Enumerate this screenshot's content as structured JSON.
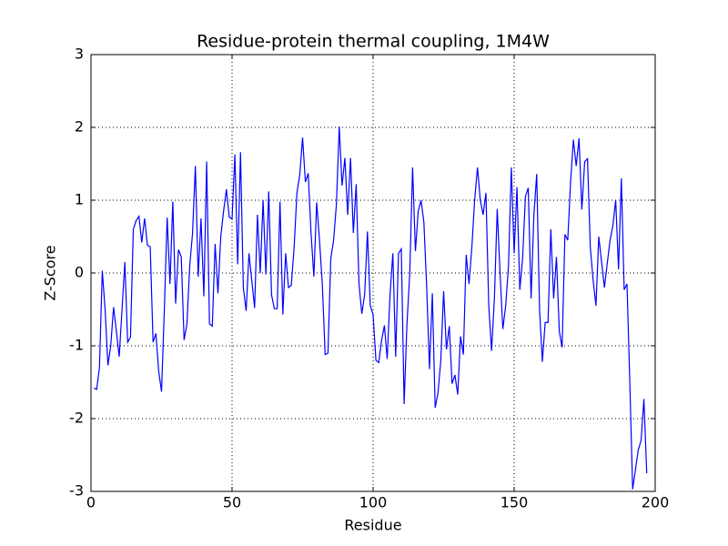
{
  "chart_data": {
    "type": "line",
    "title": "Residue-protein thermal coupling, 1M4W",
    "x_label": "Residue",
    "y_label": "Z-Score",
    "x": [
      1,
      2,
      3,
      4,
      5,
      6,
      7,
      8,
      9,
      10,
      11,
      12,
      13,
      14,
      15,
      16,
      17,
      18,
      19,
      20,
      21,
      22,
      23,
      24,
      25,
      26,
      27,
      28,
      29,
      30,
      31,
      32,
      33,
      34,
      35,
      36,
      37,
      38,
      39,
      40,
      41,
      42,
      43,
      44,
      45,
      46,
      47,
      48,
      49,
      50,
      51,
      52,
      53,
      54,
      55,
      56,
      57,
      58,
      59,
      60,
      61,
      62,
      63,
      64,
      65,
      66,
      67,
      68,
      69,
      70,
      71,
      72,
      73,
      74,
      75,
      76,
      77,
      78,
      79,
      80,
      81,
      82,
      83,
      84,
      85,
      86,
      87,
      88,
      89,
      90,
      91,
      92,
      93,
      94,
      95,
      96,
      97,
      98,
      99,
      100,
      101,
      102,
      103,
      104,
      105,
      106,
      107,
      108,
      109,
      110,
      111,
      112,
      113,
      114,
      115,
      116,
      117,
      118,
      119,
      120,
      121,
      122,
      123,
      124,
      125,
      126,
      127,
      128,
      129,
      130,
      131,
      132,
      133,
      134,
      135,
      136,
      137,
      138,
      139,
      140,
      141,
      142,
      143,
      144,
      145,
      146,
      147,
      148,
      149,
      150,
      151,
      152,
      153,
      154,
      155,
      156,
      157,
      158,
      159,
      160,
      161,
      162,
      163,
      164,
      165,
      166,
      167,
      168,
      169,
      170,
      171,
      172,
      173,
      174,
      175,
      176,
      177,
      178,
      179,
      180,
      181,
      182,
      183,
      184,
      185,
      186,
      187,
      188,
      189,
      190,
      191,
      192,
      193,
      194,
      195,
      196,
      197
    ],
    "series": [
      {
        "name": "Z-Score",
        "color": "#0000ff",
        "values": [
          -1.58,
          -1.6,
          -1.3,
          0.03,
          -0.5,
          -1.27,
          -1.0,
          -0.47,
          -0.8,
          -1.15,
          -0.5,
          0.15,
          -0.95,
          -0.88,
          0.6,
          0.72,
          0.78,
          0.42,
          0.75,
          0.38,
          0.36,
          -0.95,
          -0.83,
          -1.35,
          -1.63,
          -0.5,
          0.76,
          -0.15,
          0.98,
          -0.42,
          0.32,
          0.22,
          -0.92,
          -0.7,
          0.1,
          0.55,
          1.47,
          -0.05,
          0.75,
          -0.32,
          1.53,
          -0.7,
          -0.73,
          0.4,
          -0.28,
          0.5,
          0.85,
          1.15,
          0.77,
          0.74,
          1.63,
          0.12,
          1.66,
          -0.2,
          -0.52,
          0.27,
          -0.1,
          -0.48,
          0.8,
          0.0,
          1.0,
          -0.02,
          1.12,
          -0.3,
          -0.49,
          -0.49,
          0.98,
          -0.57,
          0.27,
          -0.2,
          -0.17,
          0.35,
          1.1,
          1.35,
          1.86,
          1.25,
          1.37,
          0.55,
          -0.05,
          0.97,
          0.45,
          -0.15,
          -1.12,
          -1.1,
          0.2,
          0.45,
          0.95,
          2.01,
          1.2,
          1.58,
          0.8,
          1.58,
          0.55,
          1.22,
          -0.15,
          -0.56,
          -0.3,
          0.57,
          -0.45,
          -0.57,
          -1.2,
          -1.23,
          -0.93,
          -0.72,
          -1.18,
          -0.3,
          0.27,
          -1.15,
          0.27,
          0.33,
          -1.8,
          -0.7,
          0.0,
          1.45,
          0.3,
          0.85,
          1.0,
          0.7,
          -0.2,
          -1.32,
          -0.28,
          -1.85,
          -1.65,
          -1.2,
          -0.25,
          -1.05,
          -0.73,
          -1.52,
          -1.4,
          -1.67,
          -0.87,
          -1.12,
          0.25,
          -0.15,
          0.35,
          1.0,
          1.45,
          1.0,
          0.8,
          1.1,
          -0.45,
          -1.07,
          -0.35,
          0.88,
          0.0,
          -0.77,
          -0.45,
          0.1,
          1.45,
          0.27,
          1.18,
          -0.23,
          0.2,
          1.05,
          1.17,
          -0.35,
          0.8,
          1.36,
          -0.5,
          -1.22,
          -0.68,
          -0.68,
          0.6,
          -0.35,
          0.22,
          -0.8,
          -1.02,
          0.53,
          0.45,
          1.25,
          1.83,
          1.47,
          1.85,
          0.87,
          1.53,
          1.57,
          0.35,
          -0.1,
          -0.45,
          0.5,
          0.15,
          -0.2,
          0.13,
          0.45,
          0.65,
          1.0,
          0.05,
          1.3,
          -0.23,
          -0.15,
          -1.5,
          -2.97,
          -2.7,
          -2.43,
          -2.3,
          -1.73,
          -2.75
        ]
      }
    ],
    "xlim": [
      0,
      200
    ],
    "xticks": [
      0,
      50,
      100,
      150,
      200
    ],
    "ylim": [
      -3,
      3
    ],
    "yticks": [
      -3,
      -2,
      -1,
      0,
      1,
      2,
      3
    ],
    "grid": true
  }
}
